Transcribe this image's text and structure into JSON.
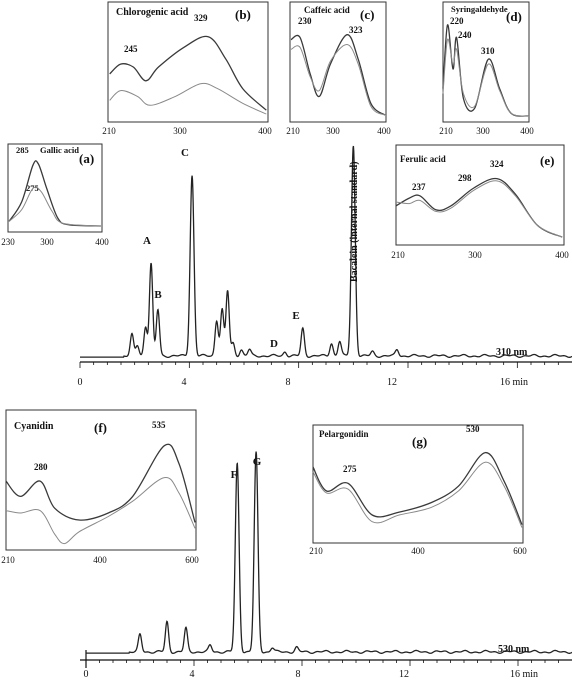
{
  "chart_data": [
    {
      "type": "line",
      "id": "chrom310",
      "detector_label": "310 nm",
      "x_ticks": [
        "0",
        "4",
        "8",
        "12",
        "16 min"
      ],
      "xlim": [
        0,
        18
      ],
      "peaks": [
        {
          "label": "A",
          "x": 2.6,
          "y": 0.44
        },
        {
          "label": "B",
          "x": 2.85,
          "y": 0.22
        },
        {
          "label": "C",
          "x": 4.1,
          "y": 0.86
        },
        {
          "label": "D",
          "x": 7.5,
          "y": 0.02
        },
        {
          "label": "E",
          "x": 8.15,
          "y": 0.13
        }
      ],
      "annotation": "Bacalein (internal standard)",
      "internal_standard_peak": {
        "x": 10.0,
        "y": 1.0
      },
      "minor_peaks": [
        {
          "x": 1.9,
          "y": 0.1
        },
        {
          "x": 2.1,
          "y": 0.05
        },
        {
          "x": 2.4,
          "y": 0.14
        },
        {
          "x": 5.0,
          "y": 0.17
        },
        {
          "x": 5.2,
          "y": 0.22
        },
        {
          "x": 5.4,
          "y": 0.31
        },
        {
          "x": 5.6,
          "y": 0.06
        },
        {
          "x": 5.9,
          "y": 0.03
        },
        {
          "x": 6.2,
          "y": 0.03
        },
        {
          "x": 9.2,
          "y": 0.06
        },
        {
          "x": 9.5,
          "y": 0.07
        },
        {
          "x": 10.7,
          "y": 0.02
        },
        {
          "x": 11.6,
          "y": 0.03
        }
      ]
    },
    {
      "type": "line",
      "id": "chrom530",
      "detector_label": "530 nm",
      "x_ticks": [
        "0",
        "4",
        "8",
        "12",
        "16 min"
      ],
      "xlim": [
        0,
        18
      ],
      "peaks": [
        {
          "label": "F",
          "x": 5.6,
          "y": 0.88
        },
        {
          "label": "G",
          "x": 6.3,
          "y": 0.93
        }
      ],
      "minor_peaks": [
        {
          "x": 2.0,
          "y": 0.08
        },
        {
          "x": 3.0,
          "y": 0.14
        },
        {
          "x": 3.7,
          "y": 0.11
        },
        {
          "x": 4.6,
          "y": 0.03
        },
        {
          "x": 6.9,
          "y": 0.02
        },
        {
          "x": 7.8,
          "y": 0.02
        }
      ]
    },
    {
      "type": "line",
      "id": "inset-a",
      "panel": "(a)",
      "compound": "Gallic acid",
      "xlim": [
        230,
        400
      ],
      "x_ticks": [
        "230",
        "300",
        "400"
      ],
      "peak_labels": [
        "285",
        "275"
      ],
      "series": [
        {
          "values": [
            [
              232,
              0.1
            ],
            [
              255,
              0.4
            ],
            [
              275,
              0.95
            ],
            [
              285,
              0.97
            ],
            [
              300,
              0.6
            ],
            [
              320,
              0.15
            ],
            [
              340,
              0.05
            ],
            [
              398,
              0.03
            ]
          ]
        },
        {
          "values": [
            [
              232,
              0.1
            ],
            [
              255,
              0.28
            ],
            [
              275,
              0.6
            ],
            [
              290,
              0.55
            ],
            [
              310,
              0.25
            ],
            [
              330,
              0.07
            ],
            [
              398,
              0.03
            ]
          ]
        }
      ]
    },
    {
      "type": "line",
      "id": "inset-b",
      "panel": "(b)",
      "compound": "Chlorogenic acid",
      "xlim": [
        210,
        400
      ],
      "x_ticks": [
        "210",
        "300",
        "400"
      ],
      "peak_labels": [
        "245",
        "329"
      ],
      "series": [
        {
          "values": [
            [
              212,
              0.45
            ],
            [
              225,
              0.55
            ],
            [
              240,
              0.52
            ],
            [
              255,
              0.38
            ],
            [
              270,
              0.52
            ],
            [
              300,
              0.72
            ],
            [
              329,
              0.83
            ],
            [
              350,
              0.6
            ],
            [
              370,
              0.3
            ],
            [
              398,
              0.08
            ]
          ]
        },
        {
          "values": [
            [
              212,
              0.18
            ],
            [
              225,
              0.28
            ],
            [
              245,
              0.22
            ],
            [
              260,
              0.13
            ],
            [
              290,
              0.22
            ],
            [
              320,
              0.35
            ],
            [
              340,
              0.3
            ],
            [
              370,
              0.15
            ],
            [
              398,
              0.04
            ]
          ]
        }
      ]
    },
    {
      "type": "line",
      "id": "inset-c",
      "panel": "(c)",
      "compound": "Caffeic acid",
      "xlim": [
        210,
        400
      ],
      "x_ticks": [
        "210",
        "300",
        "400"
      ],
      "peak_labels": [
        "230",
        "323"
      ],
      "series": [
        {
          "values": [
            [
              212,
              0.8
            ],
            [
              230,
              0.82
            ],
            [
              250,
              0.45
            ],
            [
              268,
              0.22
            ],
            [
              290,
              0.55
            ],
            [
              323,
              0.85
            ],
            [
              345,
              0.6
            ],
            [
              370,
              0.15
            ],
            [
              398,
              0.03
            ]
          ]
        },
        {
          "values": [
            [
              212,
              0.7
            ],
            [
              230,
              0.72
            ],
            [
              250,
              0.42
            ],
            [
              268,
              0.28
            ],
            [
              290,
              0.58
            ],
            [
              323,
              0.75
            ],
            [
              345,
              0.55
            ],
            [
              370,
              0.12
            ],
            [
              398,
              0.03
            ]
          ]
        }
      ]
    },
    {
      "type": "line",
      "id": "inset-d",
      "panel": "(d)",
      "compound": "Syringaldehyde",
      "xlim": [
        210,
        400
      ],
      "x_ticks": [
        "210",
        "300",
        "400"
      ],
      "peak_labels": [
        "220",
        "240",
        "310"
      ],
      "series": [
        {
          "values": [
            [
              210,
              0.3
            ],
            [
              220,
              0.95
            ],
            [
              232,
              0.5
            ],
            [
              240,
              0.82
            ],
            [
              255,
              0.2
            ],
            [
              280,
              0.1
            ],
            [
              310,
              0.6
            ],
            [
              335,
              0.3
            ],
            [
              360,
              0.05
            ],
            [
              398,
              0.02
            ]
          ]
        },
        {
          "values": [
            [
              210,
              0.25
            ],
            [
              220,
              0.8
            ],
            [
              232,
              0.55
            ],
            [
              240,
              0.7
            ],
            [
              255,
              0.25
            ],
            [
              280,
              0.12
            ],
            [
              310,
              0.55
            ],
            [
              335,
              0.28
            ],
            [
              360,
              0.05
            ],
            [
              398,
              0.02
            ]
          ]
        }
      ]
    },
    {
      "type": "line",
      "id": "inset-e",
      "panel": "(e)",
      "compound": "Ferulic acid",
      "xlim": [
        210,
        400
      ],
      "x_ticks": [
        "210",
        "300",
        "400"
      ],
      "peak_labels": [
        "237",
        "298",
        "324"
      ],
      "series": [
        {
          "values": [
            [
              210,
              0.45
            ],
            [
              225,
              0.55
            ],
            [
              237,
              0.58
            ],
            [
              255,
              0.4
            ],
            [
              272,
              0.45
            ],
            [
              298,
              0.68
            ],
            [
              324,
              0.8
            ],
            [
              345,
              0.6
            ],
            [
              370,
              0.2
            ],
            [
              398,
              0.05
            ]
          ]
        },
        {
          "values": [
            [
              210,
              0.5
            ],
            [
              225,
              0.48
            ],
            [
              237,
              0.52
            ],
            [
              255,
              0.38
            ],
            [
              272,
              0.42
            ],
            [
              298,
              0.65
            ],
            [
              324,
              0.77
            ],
            [
              345,
              0.58
            ],
            [
              370,
              0.2
            ],
            [
              398,
              0.05
            ]
          ]
        }
      ]
    },
    {
      "type": "line",
      "id": "inset-f",
      "panel": "(f)",
      "compound": "Cyanidin",
      "xlim": [
        210,
        600
      ],
      "x_ticks": [
        "210",
        "400",
        "600"
      ],
      "peak_labels": [
        "280",
        "535"
      ],
      "series": [
        {
          "values": [
            [
              210,
              0.55
            ],
            [
              240,
              0.42
            ],
            [
              280,
              0.55
            ],
            [
              310,
              0.32
            ],
            [
              360,
              0.22
            ],
            [
              420,
              0.28
            ],
            [
              470,
              0.42
            ],
            [
              535,
              0.85
            ],
            [
              565,
              0.7
            ],
            [
              598,
              0.2
            ]
          ]
        },
        {
          "values": [
            [
              210,
              0.3
            ],
            [
              240,
              0.28
            ],
            [
              280,
              0.3
            ],
            [
              310,
              0.1
            ],
            [
              330,
              0.02
            ],
            [
              360,
              0.12
            ],
            [
              420,
              0.25
            ],
            [
              470,
              0.38
            ],
            [
              535,
              0.58
            ],
            [
              565,
              0.45
            ],
            [
              598,
              0.15
            ]
          ]
        }
      ]
    },
    {
      "type": "line",
      "id": "inset-g",
      "panel": "(g)",
      "compound": "Pelargonidin",
      "xlim": [
        210,
        600
      ],
      "x_ticks": [
        "210",
        "400",
        "600"
      ],
      "peak_labels": [
        "275",
        "530"
      ],
      "series": [
        {
          "values": [
            [
              210,
              0.75
            ],
            [
              235,
              0.5
            ],
            [
              275,
              0.58
            ],
            [
              320,
              0.25
            ],
            [
              370,
              0.28
            ],
            [
              430,
              0.38
            ],
            [
              480,
              0.55
            ],
            [
              530,
              0.9
            ],
            [
              565,
              0.6
            ],
            [
              598,
              0.15
            ]
          ]
        },
        {
          "values": [
            [
              210,
              0.7
            ],
            [
              235,
              0.48
            ],
            [
              275,
              0.52
            ],
            [
              320,
              0.18
            ],
            [
              370,
              0.25
            ],
            [
              430,
              0.33
            ],
            [
              480,
              0.5
            ],
            [
              530,
              0.8
            ],
            [
              565,
              0.55
            ],
            [
              598,
              0.12
            ]
          ]
        }
      ]
    }
  ]
}
